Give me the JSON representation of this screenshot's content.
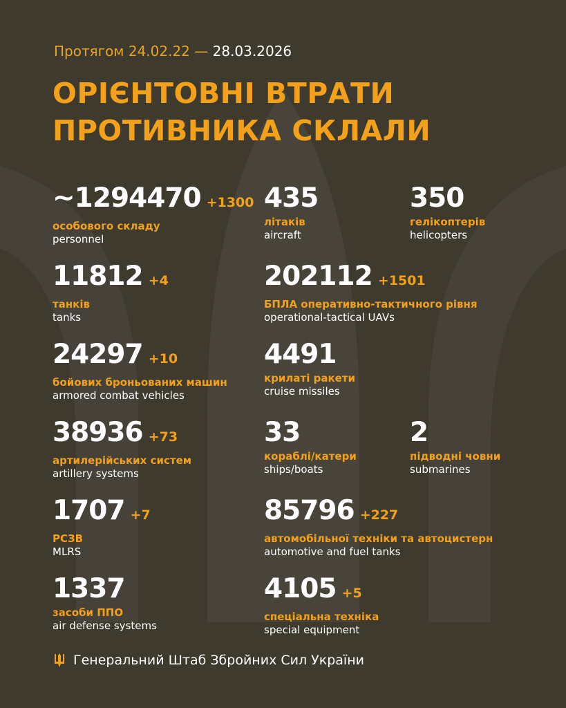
{
  "header": {
    "period_prefix": "Протягом 24.02.22 —",
    "period_end": "28.03.2026",
    "title_line1": "ОРІЄНТОВНІ ВТРАТИ",
    "title_line2": "ПРОТИВНИКА СКЛАЛИ"
  },
  "colors": {
    "background": "#3e3a2e",
    "accent": "#f3a01a",
    "text": "#ffffff"
  },
  "stats": [
    {
      "value": "~1294470",
      "delta": "+1300",
      "ua": "особового складу",
      "en": "personnel"
    },
    {
      "value": "435",
      "delta": "",
      "ua": "літаків",
      "en": "aircraft"
    },
    {
      "value": "350",
      "delta": "",
      "ua": "гелікоптерів",
      "en": "helicopters"
    },
    {
      "value": "11812",
      "delta": "+4",
      "ua": "танків",
      "en": "tanks"
    },
    {
      "value": "202112",
      "delta": "+1501",
      "ua": "БПЛА оперативно-тактичного рівня",
      "en": "operational-tactical UAVs"
    },
    {
      "value": "24297",
      "delta": "+10",
      "ua": "бойових броньованих машин",
      "en": "armored combat vehicles"
    },
    {
      "value": "4491",
      "delta": "",
      "ua": "крилаті ракети",
      "en": "cruise missiles"
    },
    {
      "value": "38936",
      "delta": "+73",
      "ua": "артилерійських систем",
      "en": "artillery systems"
    },
    {
      "value": "33",
      "delta": "",
      "ua": "кораблі/катери",
      "en": "ships/boats"
    },
    {
      "value": "2",
      "delta": "",
      "ua": "підводні човни",
      "en": "submarines"
    },
    {
      "value": "1707",
      "delta": "+7",
      "ua": "РСЗВ",
      "en": "MLRS"
    },
    {
      "value": "85796",
      "delta": "+227",
      "ua": "автомобільної техніки та автоцистерн",
      "en": "automotive and fuel tanks"
    },
    {
      "value": "1337",
      "delta": "",
      "ua": "засоби ППО",
      "en": "air defense systems"
    },
    {
      "value": "4105",
      "delta": "+5",
      "ua": "спеціальна техніка",
      "en": "special equipment"
    }
  ],
  "footer": {
    "icon": "trident-icon",
    "text": "Генеральний Штаб Збройних Сил України"
  }
}
